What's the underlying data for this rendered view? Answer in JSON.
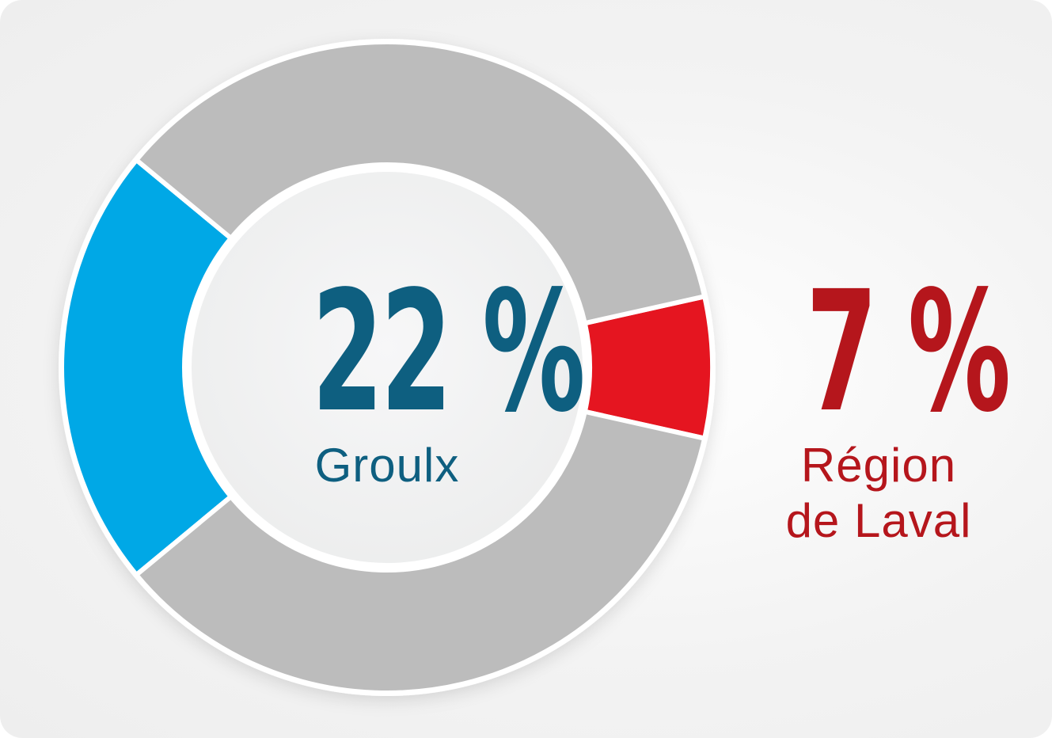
{
  "chart_data": {
    "type": "pie",
    "variant": "donut",
    "slices": [
      {
        "label": "Groulx",
        "value": 22,
        "color": "#00a8e6"
      },
      {
        "label": "Région de Laval",
        "value": 7,
        "color": "#e51520"
      },
      {
        "label": "",
        "value": 71,
        "color": "#bcbcbc"
      }
    ],
    "unit": "%"
  },
  "labels": {
    "primary": {
      "value_text": "22 %",
      "name": "Groulx",
      "color": "#0e5f80"
    },
    "secondary": {
      "value_text": "7 %",
      "name_line1": "Région",
      "name_line2": "de Laval",
      "color": "#b5161c"
    }
  },
  "colors": {
    "gap": "#ffffff",
    "inner": "#f4f4f5"
  }
}
